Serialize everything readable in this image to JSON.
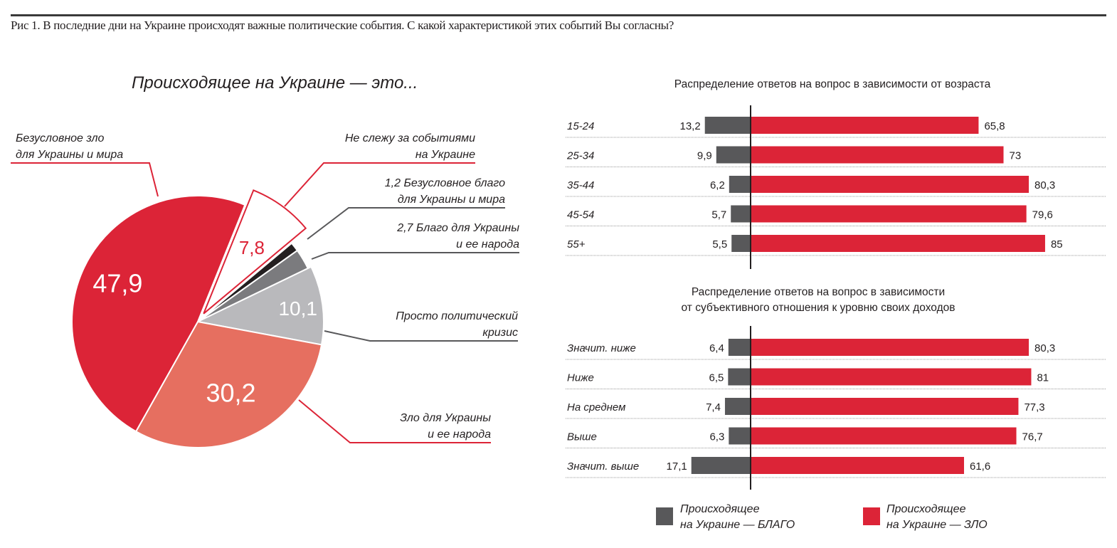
{
  "caption": "Рис 1. В последние дни на Украине происходят важные политические события. С какой характеристикой этих событий Вы согласны?",
  "colors": {
    "red": "#dc2437",
    "salmon": "#e66f60",
    "lightgray": "#b9b9bc",
    "midgray": "#7b7b7e",
    "black": "#231f20",
    "darkbar": "#58585a"
  },
  "chart_data": [
    {
      "type": "pie",
      "title": "Происходящее на Украине — это...",
      "slices": [
        {
          "label_line1": "Не слежу за событиями",
          "label_line2": "на Украине",
          "value": 7.8,
          "value_label": "7,8",
          "exploded": true
        },
        {
          "label_line1": "1,2 Безусловное благо",
          "label_line2": "для Украины и мира",
          "value": 1.2
        },
        {
          "label_line1": "2,7 Благо для Украины",
          "label_line2": "и ее народа",
          "value": 2.7
        },
        {
          "label_line1": "Просто политический",
          "label_line2": "кризис",
          "value": 10.1,
          "value_label": "10,1"
        },
        {
          "label_line1": "Зло для Украины",
          "label_line2": "и ее народа",
          "value": 30.2,
          "value_label": "30,2"
        },
        {
          "label_line1": "Безусловное зло",
          "label_line2": "для Украины и мира",
          "value": 47.9,
          "value_label": "47,9"
        }
      ]
    },
    {
      "type": "bar",
      "title": "Распределение ответов на вопрос в зависимости от возраста",
      "categories": [
        "15-24",
        "25-34",
        "35-44",
        "45-54",
        "55+"
      ],
      "series": [
        {
          "name": "Происходящее на Украине — БЛАГО",
          "values": [
            13.2,
            9.9,
            6.2,
            5.7,
            5.5
          ],
          "labels": [
            "13,2",
            "9,9",
            "6,2",
            "5,7",
            "5,5"
          ]
        },
        {
          "name": "Происходящее на Украине — ЗЛО",
          "values": [
            65.8,
            73,
            80.3,
            79.6,
            85
          ],
          "labels": [
            "65,8",
            "73",
            "80,3",
            "79,6",
            "85"
          ]
        }
      ]
    },
    {
      "type": "bar",
      "title_line1": "Распределение ответов на вопрос в зависимости",
      "title_line2": "от субъективного отношения к уровню своих доходов",
      "categories": [
        "Значит. ниже",
        "Ниже",
        "На среднем",
        "Выше",
        "Значит. выше"
      ],
      "series": [
        {
          "name": "Происходящее на Украине — БЛАГО",
          "values": [
            6.4,
            6.5,
            7.4,
            6.3,
            17.1
          ],
          "labels": [
            "6,4",
            "6,5",
            "7,4",
            "6,3",
            "17,1"
          ]
        },
        {
          "name": "Происходящее на Украине — ЗЛО",
          "values": [
            80.3,
            81,
            77.3,
            76.7,
            61.6
          ],
          "labels": [
            "80,3",
            "81",
            "77,3",
            "76,7",
            "61,6"
          ]
        }
      ]
    }
  ],
  "legend": [
    {
      "line1": "Происходящее",
      "line2": "на Украине — БЛАГО"
    },
    {
      "line1": "Происходящее",
      "line2": "на Украине — ЗЛО"
    }
  ]
}
